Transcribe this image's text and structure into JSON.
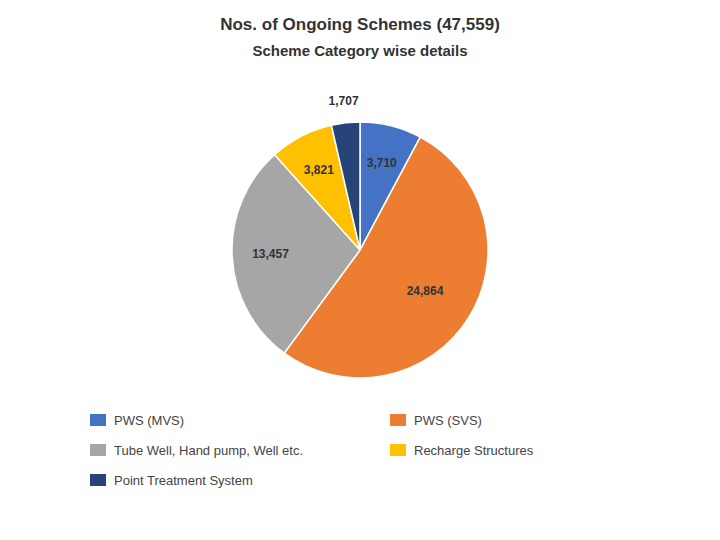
{
  "chart_data": {
    "type": "pie",
    "title": "Nos. of Ongoing Schemes (47,559)",
    "subtitle": "Scheme Category wise details",
    "categories": [
      "PWS (MVS)",
      "PWS (SVS)",
      "Tube Well, Hand pump, Well etc.",
      "Recharge Structures",
      "Point Treatment System"
    ],
    "values": [
      3710,
      24864,
      13457,
      3821,
      1707
    ],
    "value_labels": [
      "3,710",
      "24,864",
      "13,457",
      "3,821",
      "1,707"
    ],
    "colors": [
      "#4472C4",
      "#ED7D31",
      "#A6A6A6",
      "#FFC000",
      "#264478"
    ],
    "data_labels": true,
    "legend": "bottom"
  }
}
